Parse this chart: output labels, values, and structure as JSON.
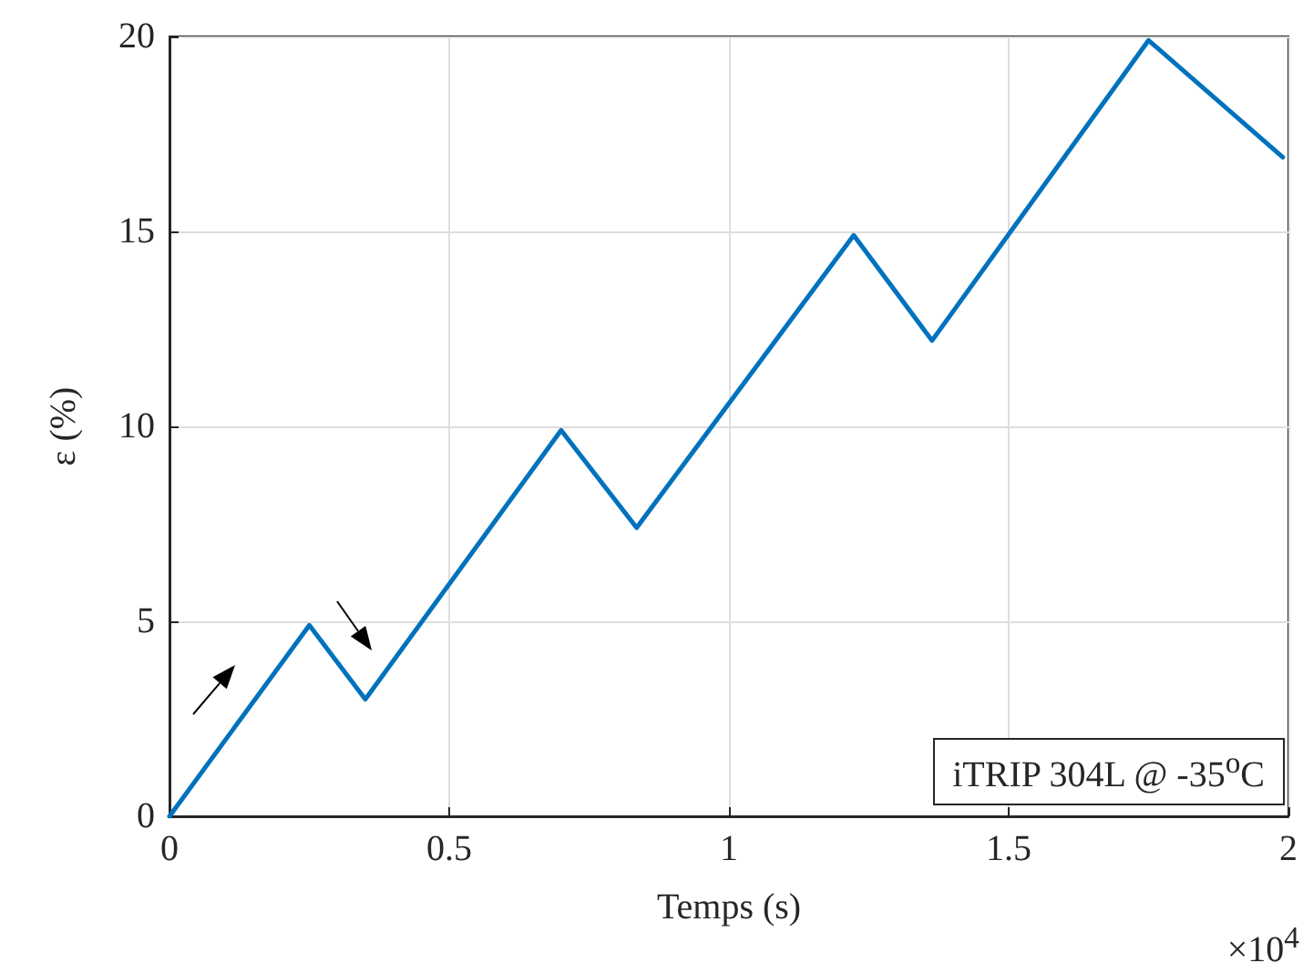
{
  "chart_data": {
    "type": "line",
    "xlabel": "Temps (s)",
    "ylabel": "ε (%)",
    "annotations": [
      "iTRIP 304L @ -35$^{o}$C",
      "×10$^{4}$"
    ],
    "x": [
      0,
      0.25,
      0.35,
      0.7,
      0.835,
      1.223,
      1.363,
      1.75,
      1.99
    ],
    "series": [
      {
        "color": "#0072bd",
        "values": [
          0,
          4.9,
          3.0,
          9.9,
          7.4,
          14.9,
          12.2,
          19.9,
          16.9
        ]
      }
    ],
    "xlim": [
      0,
      2
    ],
    "xticks": [
      0,
      0.5,
      1,
      1.5,
      2
    ],
    "ylim": [
      0,
      20
    ],
    "yticks": [
      0,
      5,
      10,
      15,
      20
    ],
    "grid": true,
    "marker": "none",
    "line_style": "solid"
  }
}
